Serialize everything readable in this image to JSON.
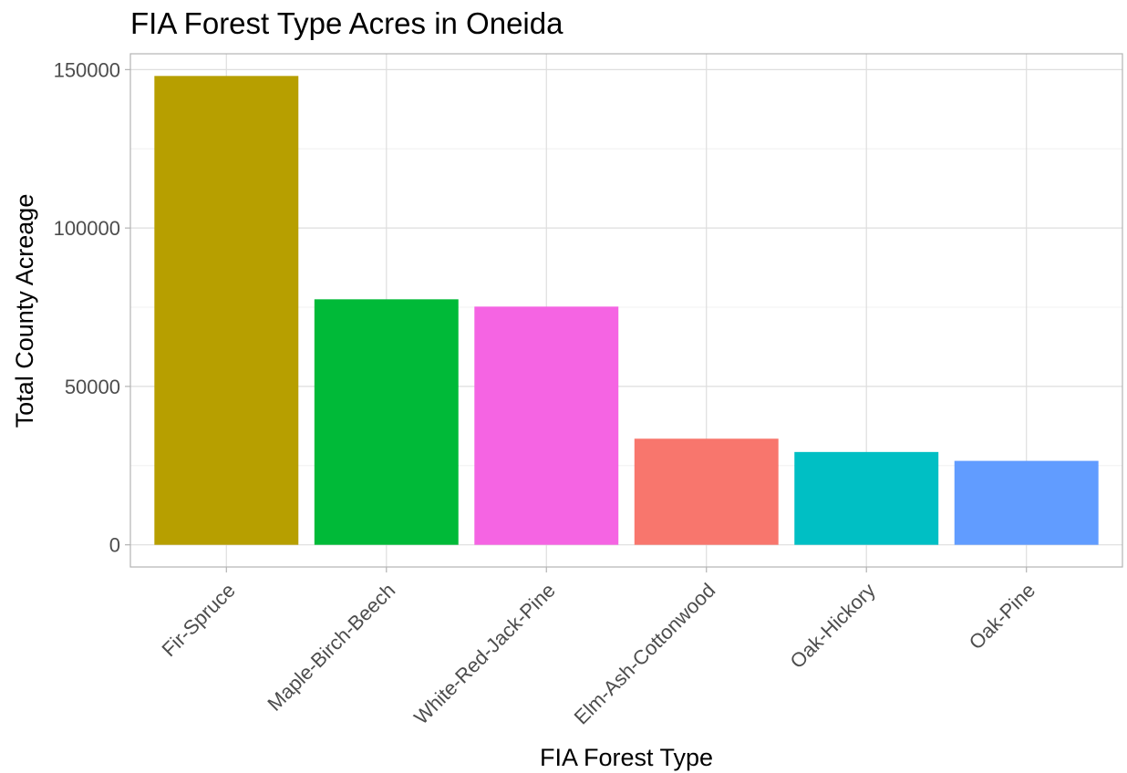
{
  "chart_data": {
    "type": "bar",
    "title": "FIA Forest Type Acres in Oneida",
    "xlabel": "FIA Forest Type",
    "ylabel": "Total County Acreage",
    "categories": [
      "Fir-Spruce",
      "Maple-Birch-Beech",
      "White-Red-Jack-Pine",
      "Elm-Ash-Cottonwood",
      "Oak-Hickory",
      "Oak-Pine"
    ],
    "values": [
      148000,
      77500,
      75200,
      33500,
      29300,
      26500
    ],
    "colors": [
      "#B79F00",
      "#00BA38",
      "#F564E3",
      "#F8766D",
      "#00BFC4",
      "#619CFF"
    ],
    "ylim": [
      -7000,
      155000
    ],
    "yticks": [
      0,
      50000,
      100000,
      150000
    ],
    "ytick_labels": [
      "0",
      "50000",
      "100000",
      "150000"
    ],
    "grid": true,
    "legend": "none"
  }
}
